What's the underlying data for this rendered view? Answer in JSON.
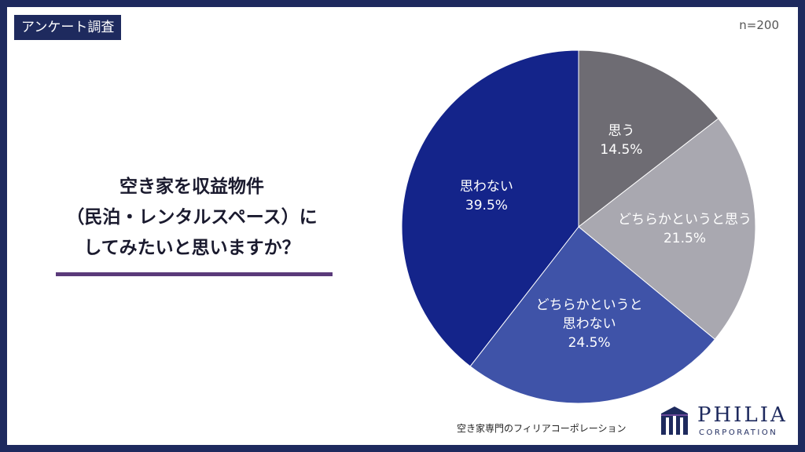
{
  "badge": "アンケート調査",
  "sample_size": "n=200",
  "question": {
    "lines": [
      "空き家を収益物件",
      "（民泊・レンタルスペース）に",
      "してみたいと思いますか？"
    ]
  },
  "chart_data": {
    "type": "pie",
    "title": "",
    "slices": [
      {
        "label": [
          "思う"
        ],
        "value": 14.5,
        "display": "14.5%",
        "color": "#6e6c73"
      },
      {
        "label": [
          "どちらかというと思う"
        ],
        "value": 21.5,
        "display": "21.5%",
        "color": "#a9a8b0"
      },
      {
        "label": [
          "どちらかというと",
          "思わない"
        ],
        "value": 24.5,
        "display": "24.5%",
        "color": "#3f53a8"
      },
      {
        "label": [
          "思わない"
        ],
        "value": 39.5,
        "display": "39.5%",
        "color": "#14248a"
      }
    ],
    "start": "12 o'clock",
    "direction": "clockwise"
  },
  "footer": {
    "company_text": "空き家専門のフィリアコーポレーション",
    "brand_name": "PHILIA",
    "brand_sub": "CORPORATION"
  },
  "colors": {
    "frame": "#1e2a5e",
    "underline": "#5a3a7a"
  }
}
